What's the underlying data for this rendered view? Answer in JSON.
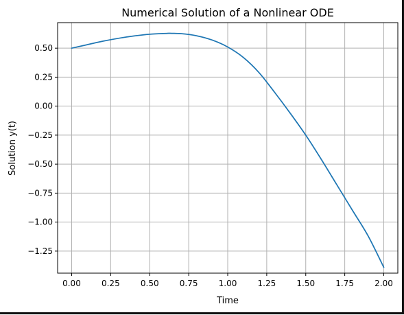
{
  "chart_data": {
    "type": "line",
    "title": "Numerical Solution of a Nonlinear ODE",
    "xlabel": "Time",
    "ylabel": "Solution y(t)",
    "xlim": [
      -0.09,
      2.09
    ],
    "ylim": [
      -1.44,
      0.72
    ],
    "grid": true,
    "x_ticks": [
      0.0,
      0.25,
      0.5,
      0.75,
      1.0,
      1.25,
      1.5,
      1.75,
      2.0
    ],
    "x_tick_labels": [
      "0.00",
      "0.25",
      "0.50",
      "0.75",
      "1.00",
      "1.25",
      "1.50",
      "1.75",
      "2.00"
    ],
    "y_ticks": [
      0.5,
      0.25,
      0.0,
      -0.25,
      -0.5,
      -0.75,
      -1.0,
      -1.25
    ],
    "y_tick_labels": [
      "0.50",
      "0.25",
      "0.00",
      "−0.25",
      "−0.50",
      "−0.75",
      "−1.00",
      "−1.25"
    ],
    "series": [
      {
        "color": "#1f77b4",
        "x": [
          0.0,
          0.1,
          0.2,
          0.3,
          0.4,
          0.5,
          0.6,
          0.63,
          0.7,
          0.8,
          0.9,
          1.0,
          1.1,
          1.2,
          1.3,
          1.4,
          1.5,
          1.6,
          1.7,
          1.8,
          1.9,
          2.0
        ],
        "y": [
          0.5,
          0.53,
          0.56,
          0.585,
          0.605,
          0.62,
          0.627,
          0.628,
          0.625,
          0.607,
          0.57,
          0.51,
          0.42,
          0.29,
          0.12,
          -0.06,
          -0.25,
          -0.46,
          -0.68,
          -0.9,
          -1.12,
          -1.39
        ]
      }
    ]
  }
}
